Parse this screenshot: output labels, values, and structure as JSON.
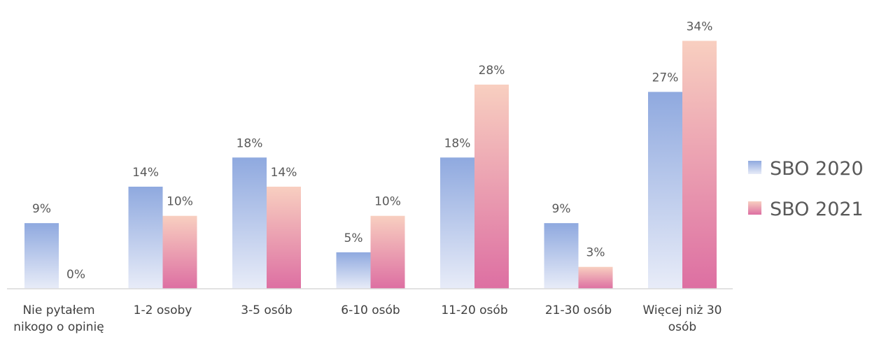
{
  "chart_data": {
    "type": "bar",
    "categories": [
      [
        "Nie pytałem",
        "nikogo o opinię"
      ],
      [
        "1-2 osoby"
      ],
      [
        "3-5 osób"
      ],
      [
        "6-10 osób"
      ],
      [
        "11-20 osób"
      ],
      [
        "21-30 osób"
      ],
      [
        "Więcej niż 30",
        "osób"
      ]
    ],
    "series": [
      {
        "name": "SBO 2020",
        "values": [
          9,
          14,
          18,
          5,
          18,
          9,
          27
        ],
        "labels": [
          "9%",
          "14%",
          "18%",
          "5%",
          "18%",
          "9%",
          "27%"
        ],
        "gradient_top": "#8fa9df",
        "gradient_bottom": "#e8ecf8"
      },
      {
        "name": "SBO 2021",
        "values": [
          0,
          10,
          14,
          10,
          28,
          3,
          34
        ],
        "labels": [
          "0%",
          "10%",
          "14%",
          "10%",
          "28%",
          "3%",
          "34%"
        ],
        "gradient_top": "#f8cfc0",
        "gradient_bottom": "#dd6fa2"
      }
    ],
    "ylim": [
      0,
      35
    ],
    "grid": false,
    "legend_position": "right",
    "axis_color": "#d9d9d9"
  }
}
